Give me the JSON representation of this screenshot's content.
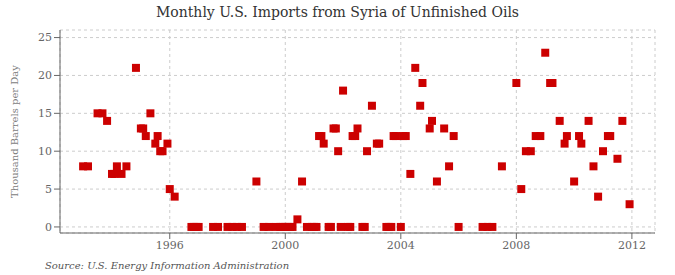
{
  "chart_data": {
    "type": "scatter",
    "title": "Monthly U.S. Imports from Syria of Unfinished Oils",
    "ylabel": "Thousand Barrels per Day",
    "annotation": "Source: U.S. Energy Information Administration",
    "color": "#cc0000",
    "marker": "square",
    "grid": true,
    "xlim": [
      1992.2,
      2012.8
    ],
    "ylim": [
      -0.8,
      26
    ],
    "xticks": [
      1996,
      2000,
      2004,
      2008,
      2012
    ],
    "yticks": [
      0,
      5,
      10,
      15,
      20,
      25
    ],
    "x": [
      1993.0,
      1993.17,
      1993.5,
      1993.67,
      1993.83,
      1994.0,
      1994.08,
      1994.17,
      1994.33,
      1994.5,
      1994.83,
      1995.0,
      1995.08,
      1995.17,
      1995.33,
      1995.5,
      1995.58,
      1995.67,
      1995.75,
      1995.92,
      1996.0,
      1996.17,
      1996.75,
      1996.83,
      1996.92,
      1997.0,
      1997.5,
      1997.67,
      1998.0,
      1998.17,
      1998.33,
      1998.5,
      1999.0,
      1999.25,
      1999.42,
      1999.67,
      1999.83,
      1999.92,
      2000.0,
      2000.08,
      2000.17,
      2000.25,
      2000.42,
      2000.58,
      2000.75,
      2000.92,
      2001.0,
      2001.08,
      2001.17,
      2001.25,
      2001.33,
      2001.5,
      2001.58,
      2001.67,
      2001.75,
      2001.83,
      2001.92,
      2002.0,
      2002.17,
      2002.25,
      2002.33,
      2002.42,
      2002.5,
      2002.67,
      2002.75,
      2002.83,
      2003.0,
      2003.17,
      2003.25,
      2003.5,
      2003.58,
      2003.67,
      2003.75,
      2003.83,
      2004.0,
      2004.08,
      2004.17,
      2004.33,
      2004.5,
      2004.67,
      2004.75,
      2005.0,
      2005.08,
      2005.25,
      2005.5,
      2005.67,
      2005.83,
      2006.0,
      2006.83,
      2007.0,
      2007.17,
      2007.5,
      2008.0,
      2008.17,
      2008.33,
      2008.5,
      2008.67,
      2008.83,
      2009.0,
      2009.17,
      2009.25,
      2009.5,
      2009.67,
      2009.75,
      2010.0,
      2010.17,
      2010.25,
      2010.5,
      2010.67,
      2010.83,
      2011.0,
      2011.17,
      2011.25,
      2011.5,
      2011.67,
      2011.92
    ],
    "values": [
      8,
      8,
      15,
      15,
      14,
      7,
      7,
      8,
      7,
      8,
      21,
      13,
      13,
      12,
      15,
      11,
      12,
      10,
      10,
      11,
      5,
      4,
      0,
      0,
      0,
      0,
      0,
      0,
      0,
      0,
      0,
      0,
      6,
      0,
      0,
      0,
      0,
      0,
      0,
      0,
      0,
      0,
      1,
      6,
      0,
      0,
      0,
      0,
      12,
      12,
      11,
      0,
      0,
      13,
      13,
      10,
      0,
      18,
      0,
      0,
      12,
      12,
      13,
      0,
      0,
      10,
      16,
      11,
      11,
      0,
      0,
      0,
      12,
      12,
      0,
      12,
      12,
      7,
      21,
      16,
      19,
      13,
      14,
      6,
      13,
      8,
      12,
      0,
      0,
      0,
      0,
      8,
      19,
      5,
      10,
      10,
      12,
      12,
      23,
      19,
      19,
      14,
      11,
      12,
      6,
      12,
      11,
      14,
      8,
      4,
      10,
      12,
      12,
      9,
      14,
      3
    ]
  }
}
